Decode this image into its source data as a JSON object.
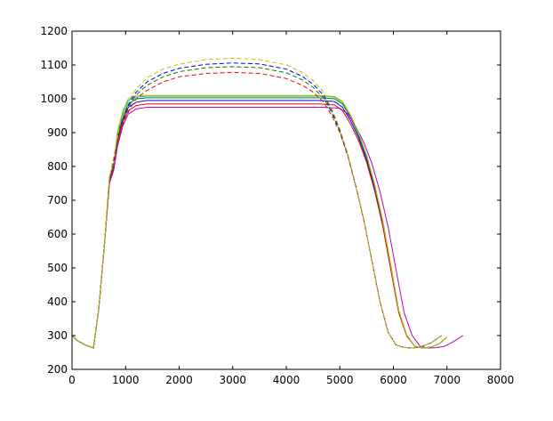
{
  "chart_data": {
    "type": "line",
    "title": "",
    "xlabel": "",
    "ylabel": "",
    "xlim": [
      0,
      8000
    ],
    "ylim": [
      200,
      1200
    ],
    "xticks": [
      0,
      1000,
      2000,
      3000,
      4000,
      5000,
      6000,
      7000,
      8000
    ],
    "yticks": [
      200,
      300,
      400,
      500,
      600,
      700,
      800,
      900,
      1000,
      1100,
      1200
    ],
    "grid": false,
    "legend": "none",
    "series": [
      {
        "color": "#0000ff",
        "style": "solid",
        "x": [
          0,
          100,
          250,
          400,
          500,
          600,
          700,
          780,
          850,
          950,
          1050,
          1200,
          1400,
          2000,
          3000,
          4000,
          4600,
          4900,
          5050,
          5200,
          5350,
          5500,
          5650,
          5800,
          5950,
          6100,
          6250,
          6400,
          6550,
          6700,
          6850,
          7000
        ],
        "y": [
          300,
          285,
          272,
          263,
          380,
          560,
          760,
          800,
          880,
          940,
          975,
          990,
          995,
          995,
          995,
          995,
          995,
          992,
          975,
          935,
          885,
          820,
          735,
          630,
          500,
          370,
          300,
          268,
          263,
          266,
          275,
          295
        ]
      },
      {
        "color": "#008000",
        "style": "solid",
        "x": [
          0,
          100,
          250,
          400,
          500,
          600,
          700,
          780,
          850,
          950,
          1050,
          1200,
          1400,
          2000,
          3000,
          4000,
          4600,
          4900,
          5050,
          5200,
          5350,
          5500,
          5650,
          5800,
          5950,
          6100,
          6250,
          6400,
          6550,
          6700,
          6850,
          7000
        ],
        "y": [
          300,
          285,
          272,
          263,
          380,
          560,
          765,
          805,
          890,
          950,
          985,
          1000,
          1003,
          1003,
          1003,
          1003,
          1003,
          1000,
          985,
          945,
          893,
          828,
          742,
          636,
          505,
          372,
          300,
          268,
          263,
          266,
          275,
          295
        ]
      },
      {
        "color": "#ff0000",
        "style": "solid",
        "x": [
          0,
          100,
          250,
          400,
          500,
          600,
          700,
          780,
          850,
          950,
          1050,
          1200,
          1400,
          2000,
          3000,
          4000,
          4600,
          4900,
          5050,
          5200,
          5350,
          5500,
          5650,
          5800,
          5950,
          6100,
          6250,
          6400,
          6550,
          6700,
          6850,
          7000
        ],
        "y": [
          300,
          285,
          272,
          263,
          380,
          560,
          755,
          795,
          870,
          930,
          965,
          980,
          985,
          985,
          985,
          985,
          985,
          982,
          965,
          925,
          876,
          812,
          728,
          624,
          495,
          367,
          298,
          268,
          263,
          266,
          275,
          295
        ]
      },
      {
        "color": "#00bfbf",
        "style": "solid",
        "x": [
          0,
          100,
          250,
          400,
          500,
          600,
          700,
          780,
          850,
          950,
          1050,
          1200,
          1400,
          2000,
          3000,
          4000,
          4600,
          4900,
          5050,
          5200,
          5350,
          5500,
          5650,
          5800,
          5950,
          6100,
          6250,
          6400,
          6550,
          6700,
          6850,
          7000
        ],
        "y": [
          300,
          285,
          272,
          263,
          380,
          560,
          770,
          810,
          900,
          960,
          995,
          1005,
          1008,
          1008,
          1008,
          1008,
          1008,
          1005,
          990,
          950,
          898,
          832,
          746,
          640,
          508,
          374,
          301,
          268,
          263,
          266,
          275,
          295
        ]
      },
      {
        "color": "#bf00bf",
        "style": "solid",
        "x": [
          0,
          100,
          250,
          400,
          500,
          600,
          700,
          780,
          850,
          950,
          1050,
          1200,
          1400,
          2000,
          3000,
          4000,
          4700,
          5000,
          5150,
          5300,
          5450,
          5600,
          5750,
          5900,
          6050,
          6200,
          6350,
          6500,
          6650,
          6800,
          6950,
          7100,
          7300
        ],
        "y": [
          300,
          285,
          272,
          263,
          380,
          560,
          750,
          790,
          860,
          920,
          955,
          970,
          975,
          975,
          975,
          975,
          975,
          972,
          955,
          918,
          870,
          808,
          725,
          622,
          494,
          368,
          300,
          268,
          263,
          264,
          268,
          280,
          300
        ]
      },
      {
        "color": "#bfbf00",
        "style": "solid",
        "x": [
          0,
          100,
          250,
          400,
          500,
          600,
          700,
          780,
          850,
          950,
          1050,
          1200,
          1400,
          2000,
          3000,
          4000,
          4600,
          4900,
          5050,
          5200,
          5350,
          5500,
          5650,
          5800,
          5950,
          6100,
          6250,
          6400,
          6550,
          6700,
          6850,
          7000
        ],
        "y": [
          300,
          285,
          272,
          263,
          380,
          560,
          772,
          812,
          905,
          965,
          1000,
          1010,
          1010,
          1010,
          1010,
          1010,
          1010,
          1007,
          992,
          952,
          900,
          834,
          748,
          642,
          510,
          375,
          302,
          268,
          263,
          266,
          275,
          295
        ]
      },
      {
        "color": "#ff0000",
        "style": "dashed",
        "x": [
          0,
          100,
          250,
          400,
          500,
          600,
          700,
          800,
          900,
          1000,
          1100,
          1200,
          1400,
          1700,
          2000,
          2500,
          3000,
          3500,
          4000,
          4300,
          4500,
          4700,
          4850,
          5000,
          5150,
          5300,
          5450,
          5600,
          5750,
          5900,
          6050,
          6200,
          6350,
          6500,
          6700,
          6900
        ],
        "y": [
          300,
          285,
          272,
          263,
          380,
          560,
          760,
          830,
          905,
          945,
          975,
          1000,
          1025,
          1050,
          1065,
          1075,
          1078,
          1075,
          1060,
          1040,
          1020,
          990,
          950,
          900,
          830,
          740,
          640,
          520,
          400,
          310,
          272,
          265,
          263,
          266,
          278,
          300
        ]
      },
      {
        "color": "#008000",
        "style": "dashed",
        "x": [
          0,
          100,
          250,
          400,
          500,
          600,
          700,
          800,
          900,
          1000,
          1100,
          1200,
          1400,
          1700,
          2000,
          2500,
          3000,
          3500,
          4000,
          4300,
          4500,
          4700,
          4850,
          5000,
          5150,
          5300,
          5450,
          5600,
          5750,
          5900,
          6050,
          6200,
          6350,
          6500,
          6700,
          6900
        ],
        "y": [
          300,
          285,
          272,
          263,
          380,
          560,
          762,
          835,
          912,
          955,
          988,
          1012,
          1040,
          1065,
          1080,
          1092,
          1095,
          1092,
          1077,
          1056,
          1034,
          1002,
          958,
          904,
          832,
          741,
          640,
          520,
          400,
          310,
          272,
          265,
          263,
          266,
          278,
          300
        ]
      },
      {
        "color": "#0000ff",
        "style": "dashed",
        "x": [
          0,
          100,
          250,
          400,
          500,
          600,
          700,
          800,
          900,
          1000,
          1100,
          1200,
          1400,
          1700,
          2000,
          2500,
          3000,
          3500,
          4000,
          4300,
          4500,
          4700,
          4850,
          5000,
          5150,
          5300,
          5450,
          5600,
          5750,
          5900,
          6050,
          6200,
          6350,
          6500,
          6700,
          6900
        ],
        "y": [
          300,
          285,
          272,
          263,
          380,
          560,
          764,
          840,
          918,
          962,
          996,
          1020,
          1050,
          1075,
          1090,
          1102,
          1106,
          1103,
          1088,
          1066,
          1043,
          1010,
          964,
          908,
          834,
          742,
          640,
          520,
          400,
          310,
          272,
          265,
          263,
          266,
          278,
          300
        ]
      },
      {
        "color": "#bfbf00",
        "style": "dashed",
        "x": [
          0,
          100,
          250,
          400,
          500,
          600,
          700,
          800,
          900,
          1000,
          1100,
          1200,
          1400,
          1700,
          2000,
          2500,
          3000,
          3500,
          4000,
          4300,
          4500,
          4700,
          4850,
          5000,
          5150,
          5300,
          5450,
          5600,
          5750,
          5900,
          6050,
          6200,
          6350,
          6500,
          6700,
          6900
        ],
        "y": [
          300,
          285,
          272,
          263,
          380,
          560,
          766,
          845,
          925,
          970,
          1005,
          1030,
          1062,
          1088,
          1102,
          1116,
          1120,
          1116,
          1100,
          1078,
          1054,
          1018,
          970,
          912,
          836,
          743,
          640,
          520,
          400,
          310,
          272,
          265,
          263,
          266,
          278,
          300
        ]
      }
    ]
  }
}
